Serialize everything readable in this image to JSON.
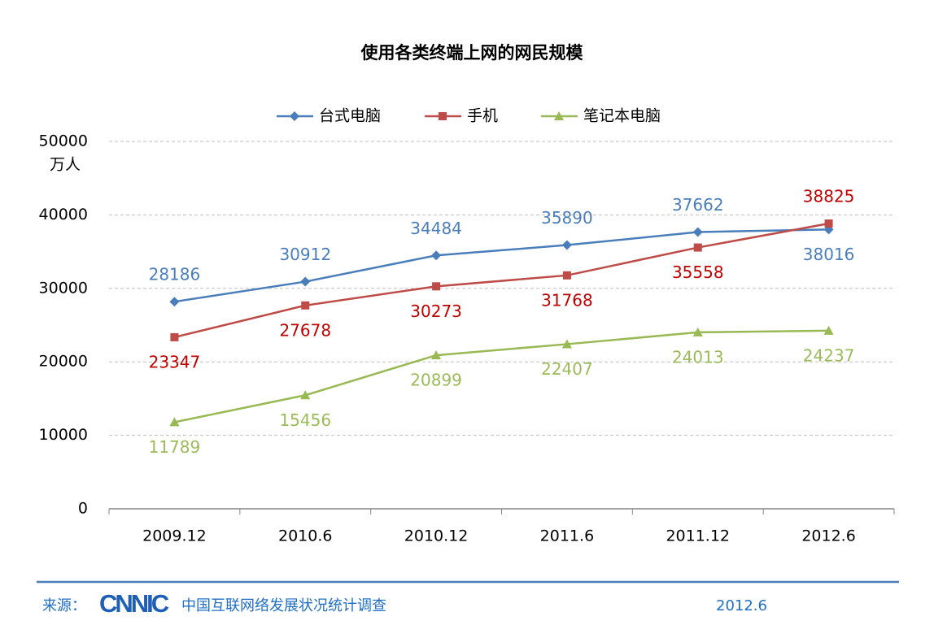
{
  "chart_data": {
    "type": "line",
    "title": "使用各类终端上网的网民规模",
    "y_unit": "万人",
    "categories": [
      "2009.12",
      "2010.6",
      "2010.12",
      "2011.6",
      "2011.12",
      "2012.6"
    ],
    "series": [
      {
        "name": "台式电脑",
        "color": "#4a7ebb",
        "label_color": "#4a7ebb",
        "marker": "diamond",
        "values": [
          28186,
          30912,
          34484,
          35890,
          37662,
          38016
        ]
      },
      {
        "name": "手机",
        "color": "#be4b48",
        "label_color": "#c00000",
        "marker": "square",
        "values": [
          23347,
          27678,
          30273,
          31768,
          35558,
          38825
        ]
      },
      {
        "name": "笔记本电脑",
        "color": "#98b954",
        "label_color": "#9bbb59",
        "marker": "triangle",
        "values": [
          11789,
          15456,
          20899,
          22407,
          24013,
          24237
        ]
      }
    ],
    "ylim": [
      0,
      50000
    ],
    "yticks": [
      0,
      10000,
      20000,
      30000,
      40000,
      50000
    ],
    "grid": true,
    "legend": "top"
  },
  "footer": {
    "source_label": "来源：",
    "logo": "CNNIC",
    "organization": "中国互联网络发展状况统计调查",
    "date": "2012.6"
  }
}
